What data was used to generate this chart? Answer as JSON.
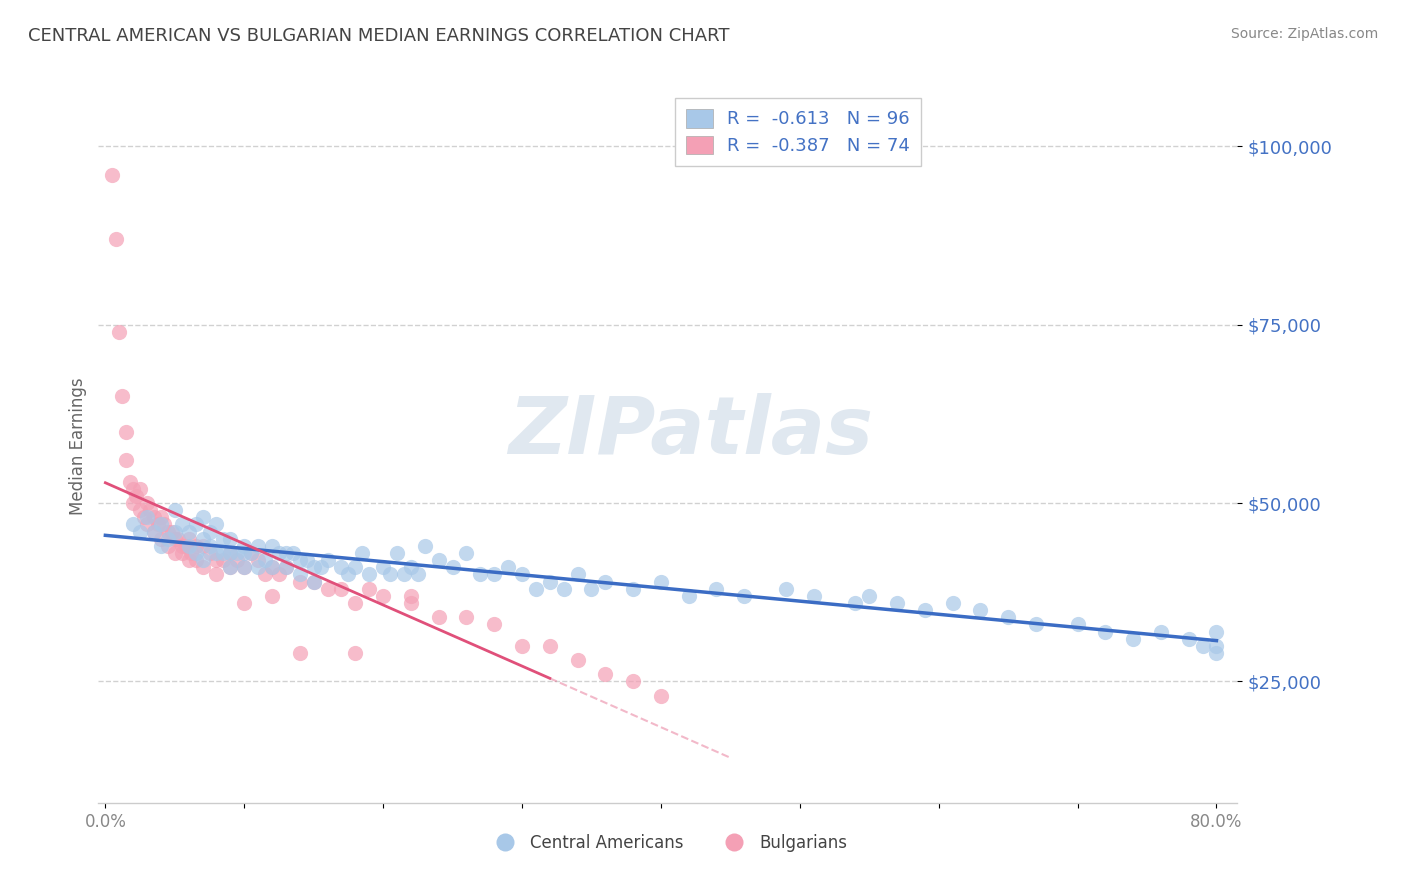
{
  "title": "CENTRAL AMERICAN VS BULGARIAN MEDIAN EARNINGS CORRELATION CHART",
  "source_text": "Source: ZipAtlas.com",
  "ylabel": "Median Earnings",
  "watermark": "ZIPatlas",
  "xlim": [
    -0.005,
    0.815
  ],
  "ylim": [
    8000,
    108000
  ],
  "yticks": [
    25000,
    50000,
    75000,
    100000
  ],
  "ytick_labels": [
    "$25,000",
    "$50,000",
    "$75,000",
    "$100,000"
  ],
  "xticks": [
    0.0,
    0.1,
    0.2,
    0.3,
    0.4,
    0.5,
    0.6,
    0.7,
    0.8
  ],
  "xtick_labels": [
    "0.0%",
    "",
    "",
    "",
    "",
    "",
    "",
    "",
    "80.0%"
  ],
  "blue_R": -0.613,
  "blue_N": 96,
  "pink_R": -0.387,
  "pink_N": 74,
  "blue_color": "#a8c8e8",
  "pink_color": "#f4a0b5",
  "blue_line_color": "#3b6cc4",
  "pink_line_color": "#e0507a",
  "axis_color": "#4472c4",
  "legend_label_blue": "Central Americans",
  "legend_label_pink": "Bulgarians",
  "blue_scatter_x": [
    0.02,
    0.025,
    0.03,
    0.035,
    0.04,
    0.04,
    0.045,
    0.05,
    0.05,
    0.055,
    0.06,
    0.06,
    0.065,
    0.065,
    0.07,
    0.07,
    0.07,
    0.075,
    0.075,
    0.08,
    0.08,
    0.085,
    0.085,
    0.09,
    0.09,
    0.09,
    0.095,
    0.1,
    0.1,
    0.1,
    0.105,
    0.11,
    0.11,
    0.115,
    0.12,
    0.12,
    0.125,
    0.13,
    0.13,
    0.135,
    0.14,
    0.14,
    0.145,
    0.15,
    0.15,
    0.155,
    0.16,
    0.17,
    0.175,
    0.18,
    0.185,
    0.19,
    0.2,
    0.205,
    0.21,
    0.215,
    0.22,
    0.225,
    0.23,
    0.24,
    0.25,
    0.26,
    0.27,
    0.28,
    0.29,
    0.3,
    0.31,
    0.32,
    0.33,
    0.34,
    0.35,
    0.36,
    0.38,
    0.4,
    0.42,
    0.44,
    0.46,
    0.49,
    0.51,
    0.54,
    0.55,
    0.57,
    0.59,
    0.61,
    0.63,
    0.65,
    0.67,
    0.7,
    0.72,
    0.74,
    0.76,
    0.78,
    0.79,
    0.8,
    0.8,
    0.8
  ],
  "blue_scatter_y": [
    47000,
    46000,
    48000,
    46000,
    47000,
    44000,
    45000,
    49000,
    46000,
    47000,
    46000,
    44000,
    47000,
    43000,
    48000,
    45000,
    42000,
    46000,
    44000,
    47000,
    43000,
    45000,
    43000,
    45000,
    43000,
    41000,
    43000,
    44000,
    43000,
    41000,
    43000,
    44000,
    41000,
    42000,
    44000,
    41000,
    43000,
    43000,
    41000,
    43000,
    42000,
    40000,
    42000,
    41000,
    39000,
    41000,
    42000,
    41000,
    40000,
    41000,
    43000,
    40000,
    41000,
    40000,
    43000,
    40000,
    41000,
    40000,
    44000,
    42000,
    41000,
    43000,
    40000,
    40000,
    41000,
    40000,
    38000,
    39000,
    38000,
    40000,
    38000,
    39000,
    38000,
    39000,
    37000,
    38000,
    37000,
    38000,
    37000,
    36000,
    37000,
    36000,
    35000,
    36000,
    35000,
    34000,
    33000,
    33000,
    32000,
    31000,
    32000,
    31000,
    30000,
    29000,
    32000,
    30000
  ],
  "pink_scatter_x": [
    0.005,
    0.008,
    0.01,
    0.012,
    0.015,
    0.015,
    0.018,
    0.02,
    0.02,
    0.022,
    0.025,
    0.025,
    0.028,
    0.03,
    0.03,
    0.032,
    0.035,
    0.035,
    0.038,
    0.04,
    0.04,
    0.042,
    0.045,
    0.045,
    0.048,
    0.05,
    0.05,
    0.052,
    0.055,
    0.055,
    0.058,
    0.06,
    0.06,
    0.062,
    0.065,
    0.065,
    0.07,
    0.07,
    0.075,
    0.08,
    0.08,
    0.085,
    0.09,
    0.09,
    0.095,
    0.1,
    0.105,
    0.11,
    0.115,
    0.12,
    0.125,
    0.13,
    0.14,
    0.15,
    0.16,
    0.17,
    0.18,
    0.19,
    0.2,
    0.22,
    0.24,
    0.26,
    0.28,
    0.3,
    0.32,
    0.34,
    0.36,
    0.38,
    0.4,
    0.12,
    0.14,
    0.22,
    0.18,
    0.1
  ],
  "pink_scatter_y": [
    96000,
    87000,
    74000,
    65000,
    60000,
    56000,
    53000,
    52000,
    50000,
    51000,
    49000,
    52000,
    48000,
    50000,
    47000,
    49000,
    48000,
    46000,
    47000,
    48000,
    45000,
    47000,
    46000,
    44000,
    46000,
    45000,
    43000,
    45000,
    44000,
    43000,
    44000,
    45000,
    42000,
    43000,
    44000,
    42000,
    44000,
    41000,
    43000,
    42000,
    40000,
    42000,
    43000,
    41000,
    42000,
    41000,
    43000,
    42000,
    40000,
    41000,
    40000,
    41000,
    39000,
    39000,
    38000,
    38000,
    36000,
    38000,
    37000,
    36000,
    34000,
    34000,
    33000,
    30000,
    30000,
    28000,
    26000,
    25000,
    23000,
    37000,
    29000,
    37000,
    29000,
    36000
  ]
}
